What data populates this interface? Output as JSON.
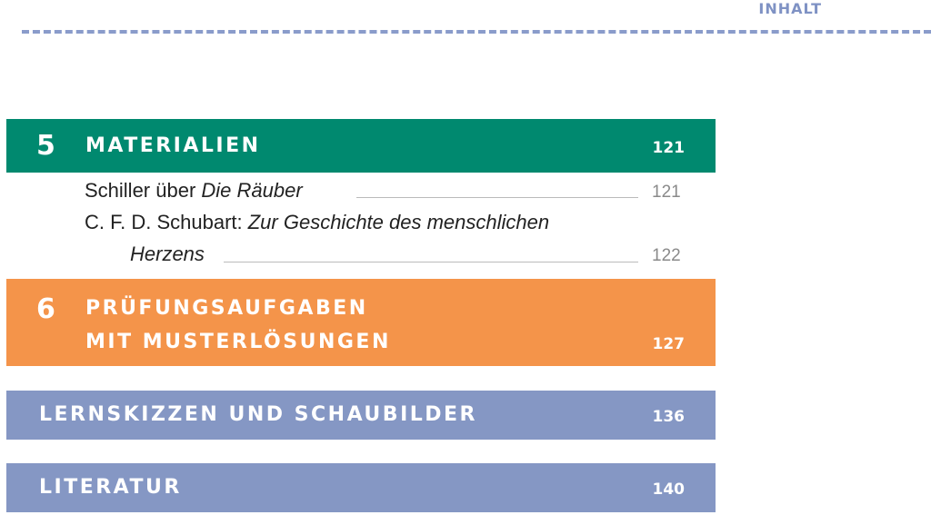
{
  "header": {
    "label": "INHALT"
  },
  "sections": {
    "materialien": {
      "number": "5",
      "title": "MATERIALIEN",
      "page": "121",
      "entries": [
        {
          "prefix": "Schiller über ",
          "italic": "Die Räuber",
          "page": "121"
        },
        {
          "prefix": "C. F. D. Schubart: ",
          "italic": "Zur Geschichte des menschlichen",
          "continuation": "Herzens",
          "page": "122"
        }
      ]
    },
    "pruefung": {
      "number": "6",
      "title_line1": "PRÜFUNGSAUFGABEN",
      "title_line2": "MIT MUSTERLÖSUNGEN",
      "page": "127"
    },
    "lernskizzen": {
      "title": "LERNSKIZZEN UND SCHAUBILDER",
      "page": "136"
    },
    "literatur": {
      "title": "LITERATUR",
      "page": "140"
    }
  },
  "colors": {
    "green": "#00896f",
    "orange": "#f4944a",
    "blue": "#8597c4",
    "header_blue": "#7f92c4"
  }
}
